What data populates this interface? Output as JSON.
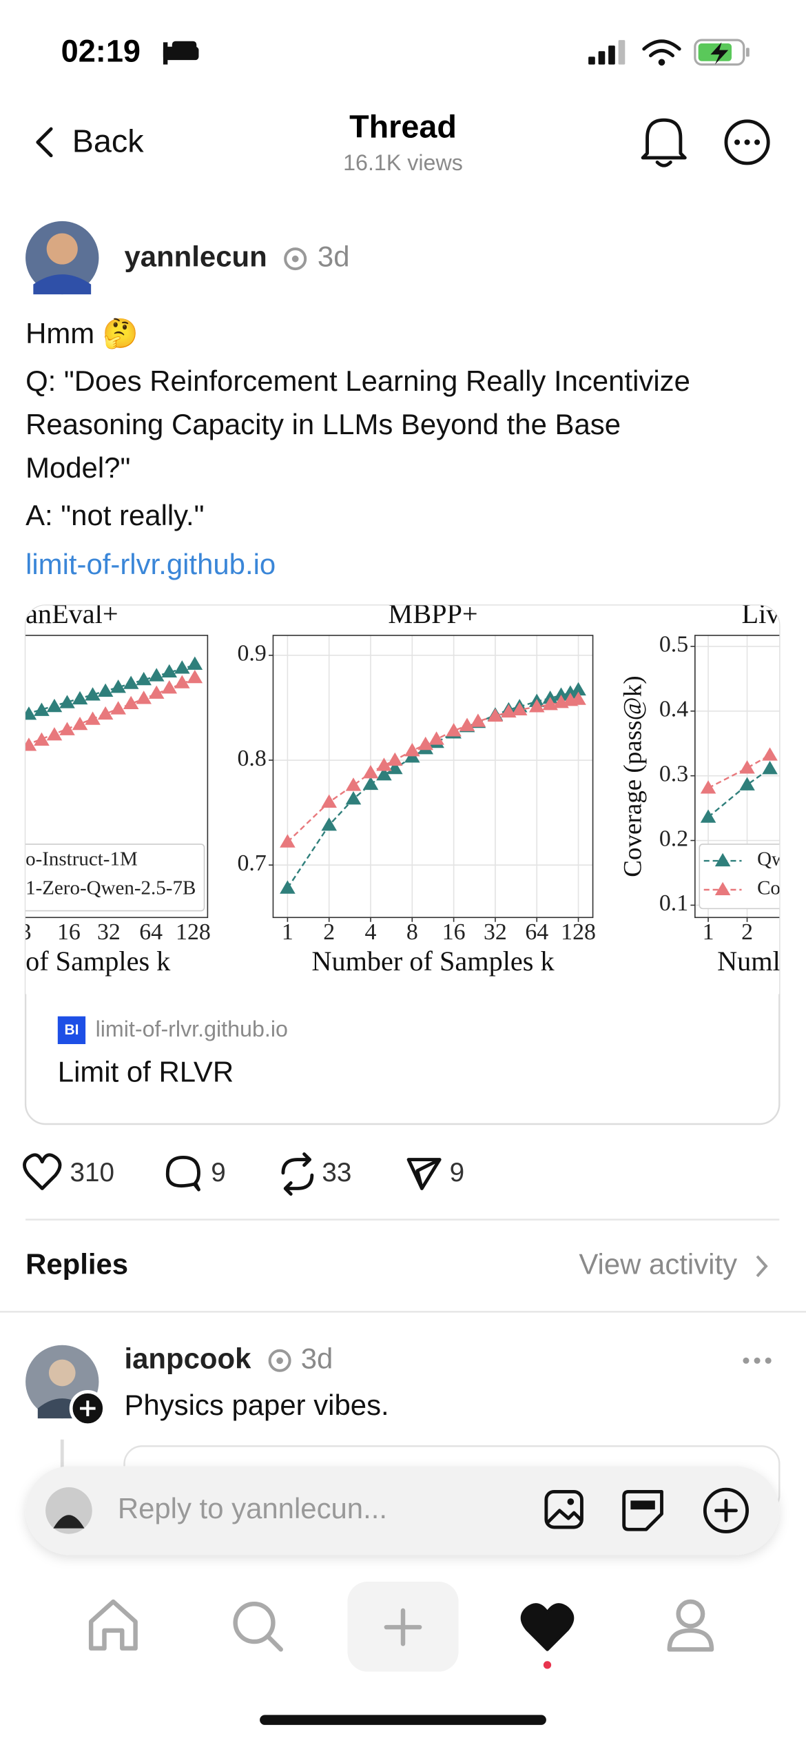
{
  "status_bar": {
    "time": "02:19"
  },
  "nav": {
    "back": "Back",
    "title": "Thread",
    "subtitle": "16.1K views"
  },
  "post": {
    "author": "yannlecun",
    "time": "3d",
    "lines": [
      "Hmm 🤔",
      "Q: \"Does Reinforcement Learning Really Incentivize",
      "Reasoning Capacity in LLMs Beyond the Base",
      "Model?\"",
      "A: \"not really.\""
    ],
    "link": "limit-of-rlvr.github.io",
    "preview": {
      "image": {
        "left_panel": {
          "title": "anEval+",
          "legend": [
            "o-Instruct-1M",
            "1-Zero-Qwen-2.5-7B"
          ],
          "xticks": [
            "3",
            "16",
            "32",
            "64",
            "128"
          ],
          "xlabel": "of Samples k"
        },
        "middle_panel": {
          "type": "line",
          "title": "MBPP+",
          "xlabel": "Number of Samples k",
          "log_x": true,
          "grid": true,
          "xlim": [
            0.786,
            163
          ],
          "xticks": [
            1,
            2,
            4,
            8,
            16,
            32,
            64,
            128
          ],
          "ylim": [
            0.65,
            0.919
          ],
          "yticks": [
            0.7,
            0.8,
            0.9
          ],
          "x": [
            1,
            2,
            3,
            4,
            5,
            6,
            8,
            10,
            12,
            16,
            20,
            24,
            32,
            40,
            48,
            64,
            80,
            96,
            112,
            128
          ],
          "series": [
            {
              "color": "#2f7f7b",
              "values": [
                0.678,
                0.738,
                0.763,
                0.777,
                0.786,
                0.792,
                0.803,
                0.811,
                0.817,
                0.826,
                0.832,
                0.836,
                0.843,
                0.848,
                0.851,
                0.856,
                0.859,
                0.862,
                0.864,
                0.867
              ]
            },
            {
              "color": "#e8787c",
              "values": [
                0.722,
                0.76,
                0.776,
                0.788,
                0.795,
                0.8,
                0.809,
                0.815,
                0.82,
                0.828,
                0.833,
                0.837,
                0.842,
                0.846,
                0.848,
                0.851,
                0.853,
                0.855,
                0.857,
                0.858
              ]
            }
          ]
        },
        "right_panel": {
          "type": "line",
          "title": "Liv",
          "ylabel": "Coverage (pass@k)",
          "xlabel": "Numl",
          "log_x": true,
          "grid": true,
          "xlim": [
            0.79,
            5.07
          ],
          "xticks": [
            1,
            2
          ],
          "ylim": [
            0.081,
            0.517
          ],
          "yticks": [
            0.1,
            0.2,
            0.3,
            0.4,
            0.5
          ],
          "x": [
            1,
            2,
            3
          ],
          "series": [
            {
              "name": "Qw",
              "color": "#2f7f7b",
              "values": [
                0.236,
                0.286,
                0.311
              ]
            },
            {
              "name": "Co",
              "color": "#e8787c",
              "values": [
                0.281,
                0.312,
                0.332
              ]
            }
          ]
        }
      },
      "icon": "BI",
      "domain": "limit-of-rlvr.github.io",
      "title": "Limit of RLVR"
    },
    "actions": {
      "likes": 310,
      "comments": 9,
      "reposts": 33,
      "shares": 9
    }
  },
  "replies": {
    "title": "Replies",
    "view_activity": "View activity",
    "items": [
      {
        "author": "ianpcook",
        "time": "3d",
        "text": "Physics paper vibes."
      }
    ]
  },
  "composer": {
    "placeholder": "Reply to yannlecun..."
  }
}
